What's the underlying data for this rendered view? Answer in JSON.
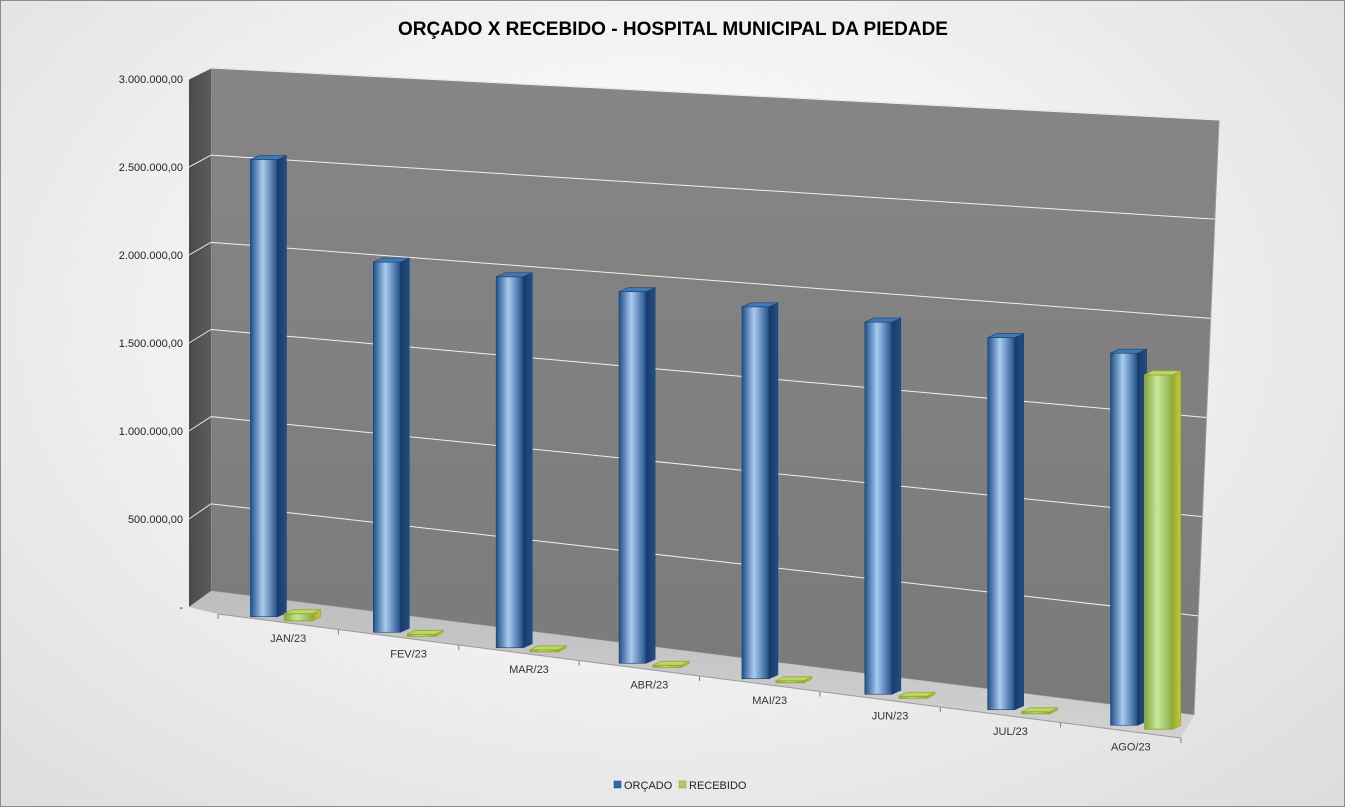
{
  "chart_data": {
    "type": "bar",
    "title": "ORÇADO X RECEBIDO - HOSPITAL MUNICIPAL DA PIEDADE",
    "categories": [
      "JAN/23",
      "FEV/23",
      "MAR/23",
      "ABR/23",
      "MAI/23",
      "JUN/23",
      "JUL/23",
      "AGO/23"
    ],
    "series": [
      {
        "name": "ORÇADO",
        "values": [
          2600000,
          2070000,
          2040000,
          2010000,
          1980000,
          1950000,
          1920000,
          1890000
        ]
      },
      {
        "name": "RECEBIDO",
        "values": [
          40000,
          0,
          0,
          0,
          0,
          0,
          0,
          1800000
        ]
      }
    ],
    "yticks": [
      "-",
      "500.000,00",
      "1.000.000,00",
      "1.500.000,00",
      "2.000.000,00",
      "2.500.000,00",
      "3.000.000,00"
    ],
    "ylim": [
      0,
      3000000
    ],
    "grid": true,
    "legend_position": "bottom",
    "colors": {
      "orcado": "#2e6aad",
      "recebido": "#a6d15a",
      "wall": "#7f7f7f",
      "floor": "#c8c8c8"
    }
  }
}
